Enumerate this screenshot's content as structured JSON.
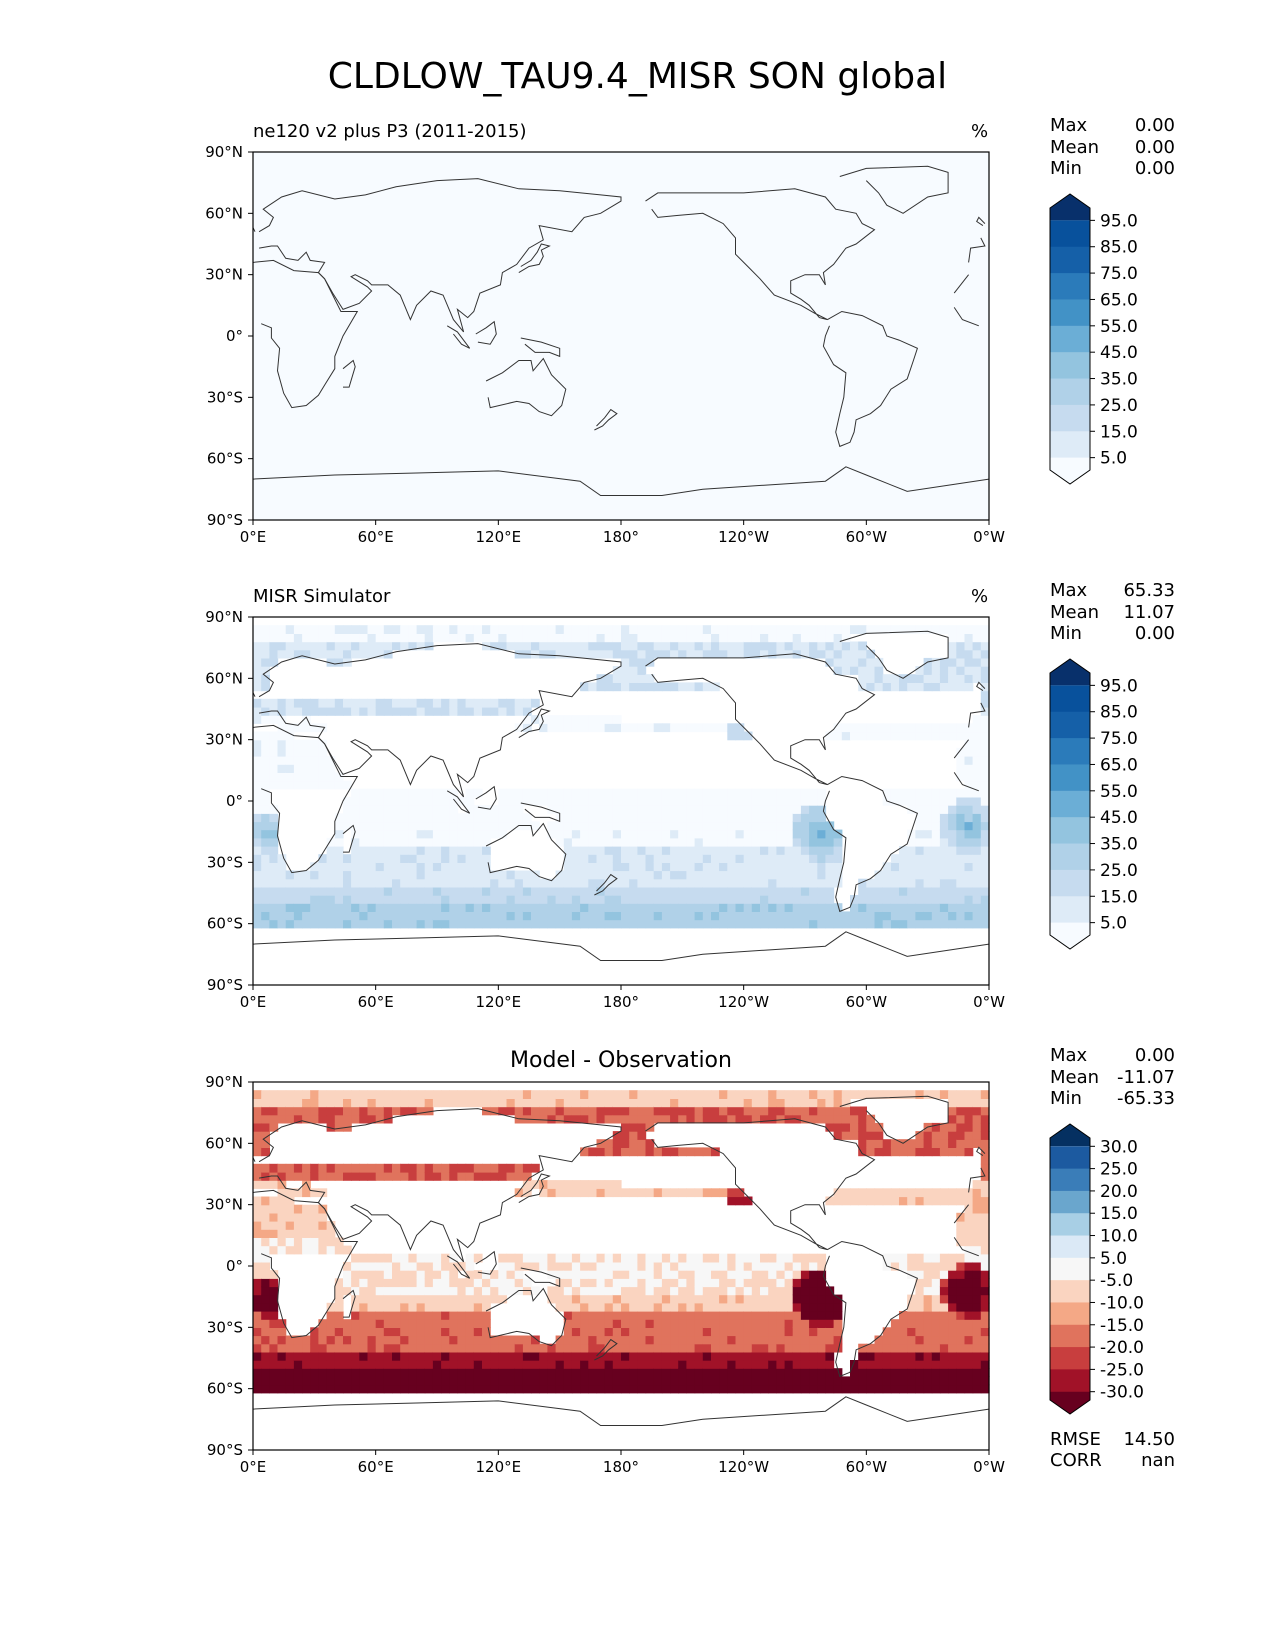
{
  "figure_title": "CLDLOW_TAU9.4_MISR SON global",
  "colors": {
    "pos_levels": [
      "#f7fbff",
      "#deebf7",
      "#c6dbef",
      "#b0d1e8",
      "#93c4df",
      "#6baed6",
      "#4292c6",
      "#2b7bba",
      "#1560a8",
      "#08519c",
      "#08306b"
    ],
    "diff_levels": [
      "#67001f",
      "#a11228",
      "#c83e3e",
      "#e0735d",
      "#f4a886",
      "#fad4c0",
      "#f7f7f7",
      "#dbe9f6",
      "#a8cfe5",
      "#6aa6cd",
      "#3a7db8",
      "#1c5aa0",
      "#053061"
    ],
    "land_line": "#333333"
  },
  "panels": [
    {
      "id": "model",
      "title": "ne120 v2 plus P3 (2011-2015)",
      "units": "%",
      "stats": [
        {
          "label": "Max",
          "value": "0.00"
        },
        {
          "label": "Mean",
          "value": "0.00"
        },
        {
          "label": "Min",
          "value": "0.00"
        }
      ],
      "colorbar_ticks": [
        "95.0",
        "85.0",
        "75.0",
        "65.0",
        "55.0",
        "45.0",
        "35.0",
        "25.0",
        "15.0",
        "5.0"
      ]
    },
    {
      "id": "obs",
      "title": "MISR Simulator",
      "units": "%",
      "stats": [
        {
          "label": "Max",
          "value": "65.33"
        },
        {
          "label": "Mean",
          "value": "11.07"
        },
        {
          "label": "Min",
          "value": "0.00"
        }
      ],
      "colorbar_ticks": [
        "95.0",
        "85.0",
        "75.0",
        "65.0",
        "55.0",
        "45.0",
        "35.0",
        "25.0",
        "15.0",
        "5.0"
      ]
    },
    {
      "id": "diff",
      "title": "Model - Observation",
      "units": "",
      "stats": [
        {
          "label": "Max",
          "value": "0.00"
        },
        {
          "label": "Mean",
          "value": "-11.07"
        },
        {
          "label": "Min",
          "value": "-65.33"
        }
      ],
      "colorbar_ticks": [
        "30.0",
        "25.0",
        "20.0",
        "15.0",
        "10.0",
        "5.0",
        "-5.0",
        "-10.0",
        "-15.0",
        "-20.0",
        "-25.0",
        "-30.0"
      ],
      "metrics": [
        {
          "label": "RMSE",
          "value": "14.50"
        },
        {
          "label": "CORR",
          "value": "nan"
        }
      ]
    }
  ],
  "lat_ticks": [
    "90°N",
    "60°N",
    "30°N",
    "0°",
    "30°S",
    "60°S",
    "90°S"
  ],
  "lon_ticks": [
    "0°E",
    "60°E",
    "120°E",
    "180°",
    "120°W",
    "60°W",
    "0°W"
  ]
}
